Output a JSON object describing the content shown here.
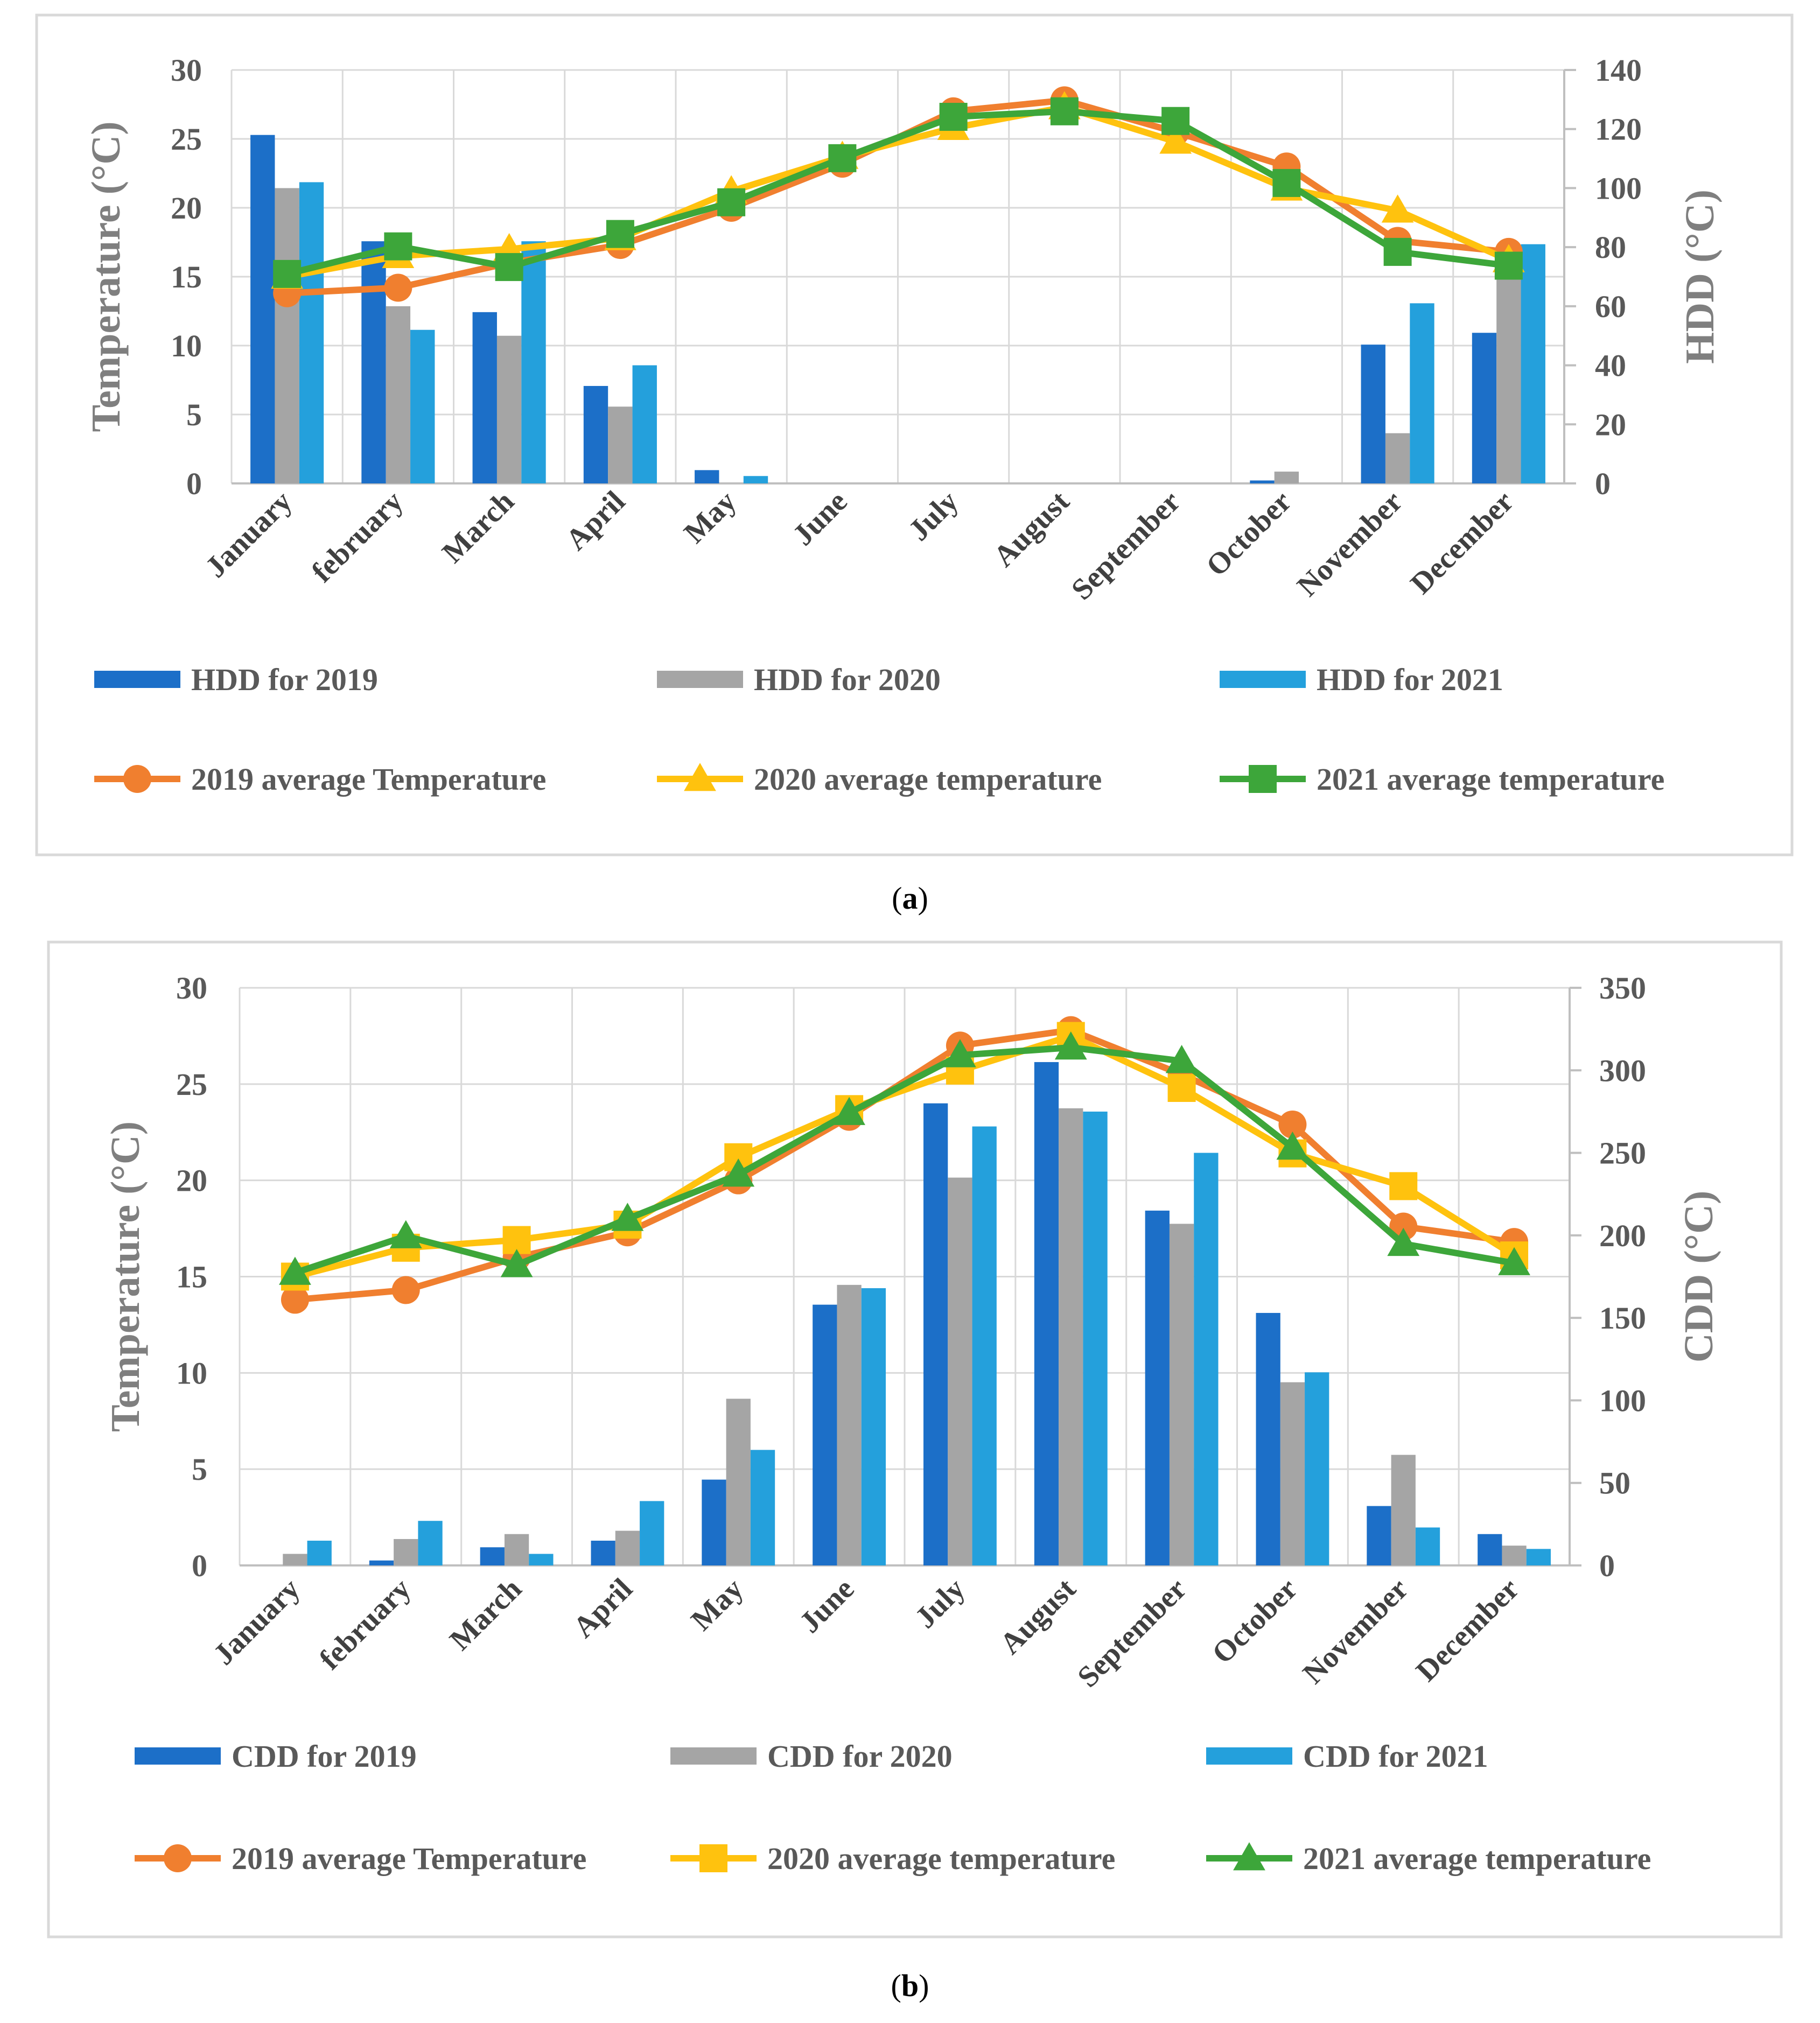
{
  "colors": {
    "bar_2019": "#1c6fc8",
    "bar_2020": "#a5a5a5",
    "bar_2021": "#24a0dc",
    "line_2019": "#f07f2f",
    "line_2020": "#ffc20e",
    "line_2021": "#3da63a"
  },
  "chart_data": [
    {
      "type": "bar",
      "panel": "a",
      "caption_letter": "a",
      "categories": [
        "January",
        "february",
        "March",
        "April",
        "May",
        "June",
        "July",
        "August",
        "September",
        "October",
        "November",
        "December"
      ],
      "ylabel": "Temperature (°C)",
      "ylim": [
        0,
        30
      ],
      "yticks": [
        0,
        5,
        10,
        15,
        20,
        25,
        30
      ],
      "y2label": "HDD (°C)",
      "y2lim": [
        0,
        140
      ],
      "y2ticks": [
        0,
        20,
        40,
        60,
        80,
        100,
        120,
        140
      ],
      "legend_position": "bottom",
      "series": [
        {
          "name": "HDD for 2019",
          "kind": "bar",
          "axis": "right",
          "color_key": "bar_2019",
          "values": [
            118,
            82,
            58,
            33,
            4.5,
            0,
            0,
            0,
            0,
            1,
            47,
            51
          ]
        },
        {
          "name": "HDD for 2020",
          "kind": "bar",
          "axis": "right",
          "color_key": "bar_2020",
          "values": [
            100,
            60,
            50,
            26,
            0,
            0,
            0,
            0,
            0,
            4,
            17,
            74
          ]
        },
        {
          "name": "HDD for 2021",
          "kind": "bar",
          "axis": "right",
          "color_key": "bar_2021",
          "values": [
            102,
            52,
            82,
            40,
            2.5,
            0,
            0,
            0,
            0,
            0,
            61,
            81
          ]
        },
        {
          "name": "2019 average Temperature",
          "kind": "line",
          "axis": "left",
          "marker": "circle",
          "color_key": "line_2019",
          "values": [
            13.8,
            14.2,
            16.0,
            17.3,
            20.0,
            23.2,
            27.0,
            27.8,
            25.5,
            23.0,
            17.6,
            16.8
          ]
        },
        {
          "name": "2020 average temperature",
          "kind": "line",
          "axis": "left",
          "marker": "triangle",
          "color_key": "line_2020",
          "values": [
            15.0,
            16.5,
            17.0,
            17.8,
            21.2,
            23.7,
            25.8,
            27.3,
            24.8,
            21.4,
            19.8,
            16.2
          ]
        },
        {
          "name": "2021 average temperature",
          "kind": "line",
          "axis": "left",
          "marker": "square",
          "color_key": "line_2021",
          "values": [
            15.2,
            17.2,
            15.7,
            18.1,
            20.4,
            23.6,
            26.6,
            27.0,
            26.3,
            21.8,
            16.8,
            15.8
          ]
        }
      ]
    },
    {
      "type": "bar",
      "panel": "b",
      "caption_letter": "b",
      "categories": [
        "January",
        "february",
        "March",
        "April",
        "May",
        "June",
        "July",
        "August",
        "September",
        "October",
        "November",
        "December"
      ],
      "ylabel": "Temperature (°C)",
      "ylim": [
        0,
        30
      ],
      "yticks": [
        0,
        5,
        10,
        15,
        20,
        25,
        30
      ],
      "y2label": "CDD (°C)",
      "y2lim": [
        0,
        350
      ],
      "y2ticks": [
        0,
        50,
        100,
        150,
        200,
        250,
        300,
        350
      ],
      "legend_position": "bottom",
      "series": [
        {
          "name": "CDD for 2019",
          "kind": "bar",
          "axis": "right",
          "color_key": "bar_2019",
          "values": [
            0,
            3,
            11,
            15,
            52,
            158,
            280,
            305,
            215,
            153,
            36,
            19
          ]
        },
        {
          "name": "CDD for 2020",
          "kind": "bar",
          "axis": "right",
          "color_key": "bar_2020",
          "values": [
            7,
            16,
            19,
            21,
            101,
            170,
            235,
            277,
            207,
            111,
            67,
            12
          ]
        },
        {
          "name": "CDD for 2021",
          "kind": "bar",
          "axis": "right",
          "color_key": "bar_2021",
          "values": [
            15,
            27,
            7,
            39,
            70,
            168,
            266,
            275,
            250,
            117,
            23,
            10
          ]
        },
        {
          "name": "2019 average Temperature",
          "kind": "line",
          "axis": "left",
          "marker": "circle",
          "color_key": "line_2019",
          "values": [
            13.8,
            14.3,
            16.0,
            17.3,
            20.0,
            23.3,
            27.0,
            27.8,
            25.5,
            22.9,
            17.6,
            16.8
          ]
        },
        {
          "name": "2020 average temperature",
          "kind": "line",
          "axis": "left",
          "marker": "square",
          "color_key": "line_2020",
          "values": [
            15.0,
            16.5,
            16.9,
            17.7,
            21.2,
            23.7,
            25.7,
            27.5,
            24.8,
            21.4,
            19.7,
            16.1
          ]
        },
        {
          "name": "2021 average temperature",
          "kind": "line",
          "axis": "left",
          "marker": "triangle",
          "color_key": "line_2021",
          "values": [
            15.2,
            17.1,
            15.6,
            18.0,
            20.3,
            23.5,
            26.5,
            26.9,
            26.2,
            21.7,
            16.7,
            15.7
          ]
        }
      ]
    }
  ]
}
